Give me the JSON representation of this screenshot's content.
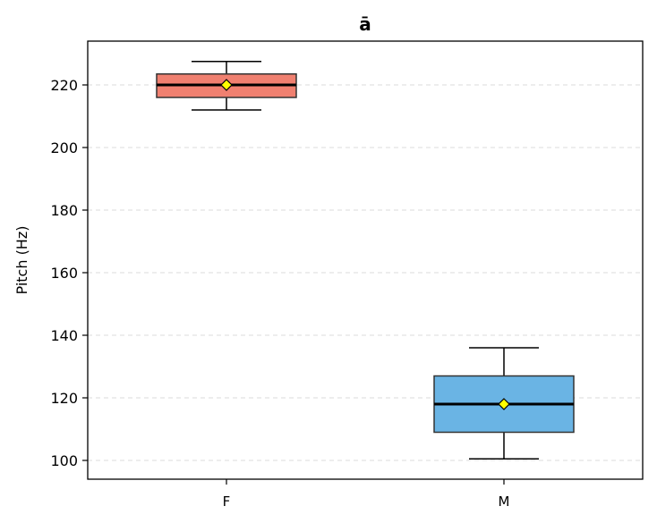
{
  "chart_data": {
    "type": "box",
    "title": "ā",
    "xlabel": "",
    "ylabel": "Pitch (Hz)",
    "ylim": [
      94,
      234
    ],
    "yticks": [
      100,
      120,
      140,
      160,
      180,
      200,
      220
    ],
    "grid": "y-dashed",
    "categories": [
      "F",
      "M"
    ],
    "boxes": [
      {
        "category": "F",
        "whisker_low": 212,
        "q1": 216,
        "median": 220,
        "q3": 223.5,
        "whisker_high": 227.5,
        "mean": 220,
        "color": "#f08070"
      },
      {
        "category": "M",
        "whisker_low": 100.5,
        "q1": 109,
        "median": 118,
        "q3": 127,
        "whisker_high": 136,
        "mean": 118,
        "color": "#6ab4e4"
      }
    ],
    "mean_marker_color": "#ffff00"
  }
}
